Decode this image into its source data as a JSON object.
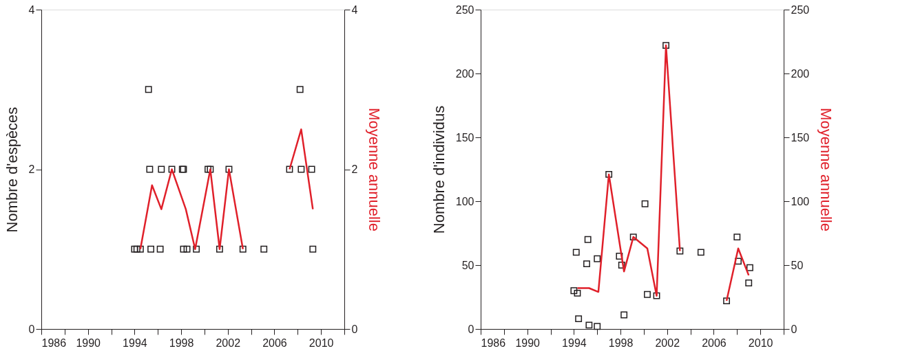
{
  "chart_data": [
    {
      "type": "scatter",
      "ylabel": "Nombre d'espèces",
      "y2label": "Moyenne annuelle",
      "xlim": [
        1986,
        2012
      ],
      "xticks": [
        1986,
        {
          "value": 1988,
          "label": null
        },
        1990,
        {
          "value": 1992,
          "label": null
        },
        1994,
        {
          "value": 1996,
          "label": null
        },
        1998,
        {
          "value": 2000,
          "label": null
        },
        2002,
        {
          "value": 2004,
          "label": null
        },
        2006,
        {
          "value": 2008,
          "label": null
        },
        2010,
        {
          "value": 2012,
          "label": null
        }
      ],
      "ylim": [
        0,
        4
      ],
      "yticks": [
        0,
        2,
        4
      ],
      "y2lim": [
        0,
        4
      ],
      "y2ticks": [
        0,
        2,
        4
      ],
      "grid": false,
      "marker": "square",
      "series": [
        {
          "color": "#231f20",
          "x": [
            1994.0,
            1994.2,
            1994.5,
            1995.4,
            1996.2,
            1998.2,
            1998.5,
            1999.3,
            2001.3,
            2003.3,
            2005.1,
            2009.3,
            1995.3,
            1996.3,
            1997.2,
            1998.1,
            1998.2,
            2000.3,
            2000.5,
            2002.1,
            2007.3,
            2008.3,
            2009.2,
            1995.2,
            2008.2
          ],
          "values": [
            1,
            1,
            1,
            1,
            1,
            1,
            1,
            1,
            1,
            1,
            1,
            1,
            2,
            2,
            2,
            2,
            2,
            2,
            2,
            2,
            2,
            2,
            2,
            3,
            3
          ]
        },
        {
          "type": "line",
          "axis": "y2",
          "marker": "none",
          "color": "#e0202a",
          "x": [
            1994.5,
            1995.5,
            1996.3,
            1997.2,
            1998.4,
            1999.2,
            2000.5,
            2001.3,
            2002.1,
            2003.3
          ],
          "values": [
            1,
            1.8,
            1.5,
            2,
            1.5,
            1,
            2,
            1,
            2,
            1
          ]
        },
        {
          "type": "line",
          "axis": "y2",
          "marker": "none",
          "color": "#e0202a",
          "x": [
            2007.3,
            2008.3,
            2009.3
          ],
          "values": [
            2,
            2.5,
            1.5
          ]
        }
      ]
    },
    {
      "type": "scatter",
      "ylabel": "Nombre d'individus",
      "y2label": "Moyenne annuelle",
      "xlim": [
        1986,
        2012
      ],
      "xticks": [
        1986,
        {
          "value": 1988,
          "label": null
        },
        1990,
        {
          "value": 1992,
          "label": null
        },
        1994,
        {
          "value": 1996,
          "label": null
        },
        1998,
        {
          "value": 2000,
          "label": null
        },
        2002,
        {
          "value": 2004,
          "label": null
        },
        2006,
        {
          "value": 2008,
          "label": null
        },
        2010,
        {
          "value": 2012,
          "label": null
        }
      ],
      "ylim": [
        0,
        250
      ],
      "yticks": [
        0,
        50,
        100,
        150,
        200,
        250
      ],
      "y2lim": [
        0,
        250
      ],
      "y2ticks": [
        0,
        50,
        100,
        150,
        200,
        250
      ],
      "grid": false,
      "marker": "square",
      "series": [
        {
          "color": "#231f20",
          "x": [
            1994.0,
            1994.3,
            1994.2,
            1994.4,
            1995.1,
            1995.2,
            1995.3,
            1996.0,
            1996.0,
            1997.0,
            1997.9,
            1998.1,
            1998.3,
            1999.1,
            2000.1,
            2000.3,
            2001.1,
            2001.9,
            2003.1,
            2004.9,
            2007.1,
            2008.0,
            2008.1,
            2009.1,
            2009.0
          ],
          "values": [
            30,
            28,
            60,
            8,
            51,
            70,
            3,
            2,
            55,
            121,
            57,
            50,
            11,
            72,
            98,
            27,
            26,
            222,
            61,
            60,
            22,
            72,
            53,
            48,
            36
          ]
        },
        {
          "type": "line",
          "axis": "y2",
          "marker": "none",
          "color": "#e0202a",
          "x": [
            1994.3,
            1995.3,
            1996.1,
            1997.0,
            1998.3,
            1999.1,
            2000.3,
            2001.1,
            2001.9,
            2003.1
          ],
          "values": [
            32,
            32,
            29,
            121,
            45,
            72,
            63,
            26,
            222,
            61
          ]
        },
        {
          "type": "line",
          "axis": "y2",
          "marker": "none",
          "color": "#e0202a",
          "x": [
            2007.1,
            2008.1,
            2009.0
          ],
          "values": [
            22,
            63,
            42
          ]
        }
      ]
    }
  ]
}
